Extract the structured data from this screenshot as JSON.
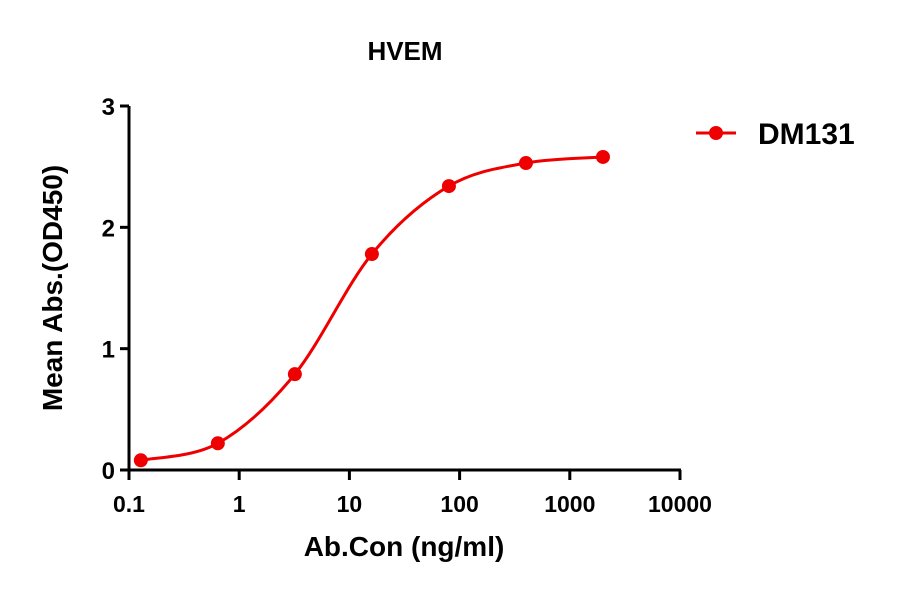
{
  "chart_data": {
    "type": "line",
    "title": "HVEM",
    "xlabel": "Ab.Con (ng/ml)",
    "ylabel": "Mean Abs.(OD450)",
    "xscale": "log",
    "xlim": [
      0.1,
      10000
    ],
    "ylim": [
      0,
      3
    ],
    "x_ticks": [
      "0.1",
      "1",
      "10",
      "100",
      "1000",
      "10000"
    ],
    "y_ticks": [
      "0",
      "1",
      "2",
      "3"
    ],
    "grid": false,
    "legend_position": "right",
    "series": [
      {
        "name": "DM131",
        "color": "#ee0000",
        "x": [
          0.128,
          0.64,
          3.2,
          16,
          80,
          400,
          2000
        ],
        "values": [
          0.08,
          0.22,
          0.79,
          1.78,
          2.34,
          2.53,
          2.58
        ]
      }
    ]
  }
}
